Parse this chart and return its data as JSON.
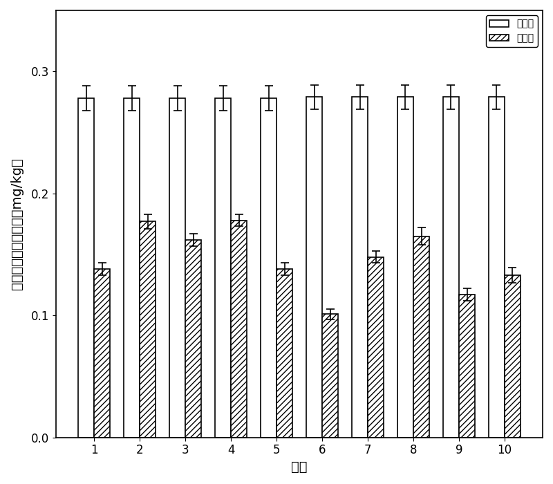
{
  "categories": [
    1,
    2,
    3,
    4,
    5,
    6,
    7,
    8,
    9,
    10
  ],
  "before_values": [
    0.278,
    0.278,
    0.278,
    0.278,
    0.278,
    0.279,
    0.279,
    0.279,
    0.279,
    0.279
  ],
  "after_values": [
    0.138,
    0.177,
    0.162,
    0.178,
    0.138,
    0.101,
    0.148,
    0.165,
    0.117,
    0.133
  ],
  "before_errors": [
    0.01,
    0.01,
    0.01,
    0.01,
    0.01,
    0.01,
    0.01,
    0.01,
    0.01,
    0.01
  ],
  "after_errors": [
    0.005,
    0.006,
    0.005,
    0.005,
    0.005,
    0.004,
    0.005,
    0.007,
    0.005,
    0.006
  ],
  "before_label": "修复前",
  "after_label": "修复后",
  "xlabel": "批次",
  "ylabel": "生物有效态的镖浓度（mg/kg）",
  "ylim": [
    0.0,
    0.35
  ],
  "yticks": [
    0.0,
    0.1,
    0.2,
    0.3
  ],
  "bar_width": 0.35,
  "before_color": "#ffffff",
  "after_color": "#aaaaaa",
  "edge_color": "#000000",
  "hatch_pattern": "////",
  "figsize": [
    8.0,
    7.0
  ],
  "dpi": 100,
  "title_fontsize": 14,
  "label_fontsize": 14,
  "tick_fontsize": 12,
  "legend_fontsize": 12
}
